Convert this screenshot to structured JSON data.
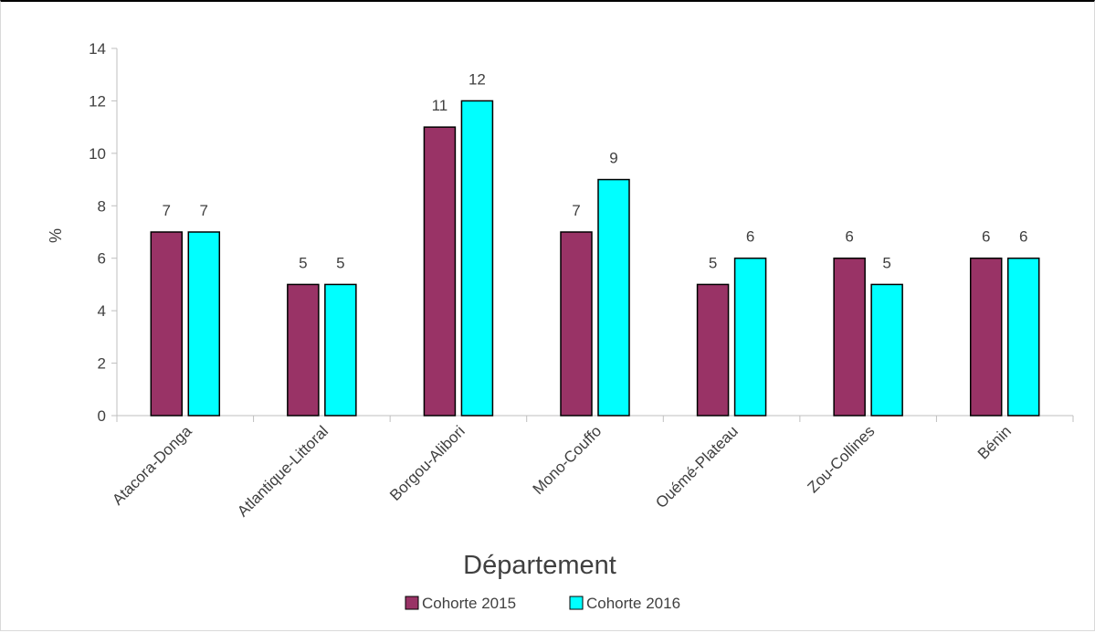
{
  "chart_data": {
    "type": "bar",
    "categories": [
      "Atacora-Donga",
      "Atlantique-Littoral",
      "Borgou-Alibori",
      "Mono-Couffo",
      "Ouémé-Plateau",
      "Zou-Collines",
      "Bénin"
    ],
    "series": [
      {
        "name": "Cohorte 2015",
        "values": [
          7,
          5,
          11,
          7,
          5,
          6,
          6
        ],
        "color": "#993366"
      },
      {
        "name": "Cohorte 2016",
        "values": [
          7,
          5,
          12,
          9,
          6,
          5,
          6
        ],
        "color": "#00ffff"
      }
    ],
    "xlabel": "Département",
    "ylabel": "%",
    "ylim": [
      0,
      14
    ],
    "yticks": [
      0,
      2,
      4,
      6,
      8,
      10,
      12,
      14
    ],
    "grid": false,
    "legend_position": "bottom",
    "data_labels": true
  }
}
